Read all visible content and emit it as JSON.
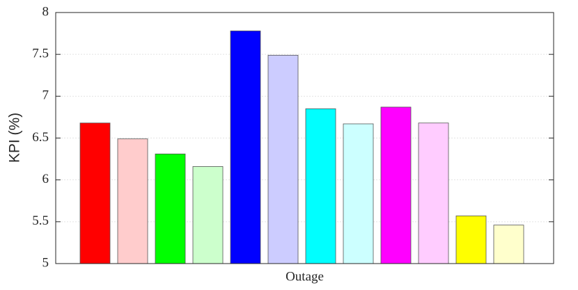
{
  "chart_data": {
    "type": "bar",
    "ylabel": "KPI (%)",
    "categories": [
      "Outage"
    ],
    "series": [
      {
        "color": "#ff0000",
        "values": [
          6.68
        ]
      },
      {
        "color": "#ffcccc",
        "values": [
          6.49
        ]
      },
      {
        "color": "#00ff00",
        "values": [
          6.31
        ]
      },
      {
        "color": "#ccffcc",
        "values": [
          6.16
        ]
      },
      {
        "color": "#0000ff",
        "values": [
          7.78
        ]
      },
      {
        "color": "#ccccff",
        "values": [
          7.49
        ]
      },
      {
        "color": "#00ffff",
        "values": [
          6.85
        ]
      },
      {
        "color": "#ccffff",
        "values": [
          6.67
        ]
      },
      {
        "color": "#ff00ff",
        "values": [
          6.87
        ]
      },
      {
        "color": "#ffccff",
        "values": [
          6.68
        ]
      },
      {
        "color": "#ffff00",
        "values": [
          5.57
        ]
      },
      {
        "color": "#ffffcc",
        "values": [
          5.46
        ]
      }
    ],
    "ylim": [
      5,
      8
    ],
    "yticks": [
      5,
      5.5,
      6,
      6.5,
      7,
      7.5,
      8
    ],
    "grid": true
  }
}
